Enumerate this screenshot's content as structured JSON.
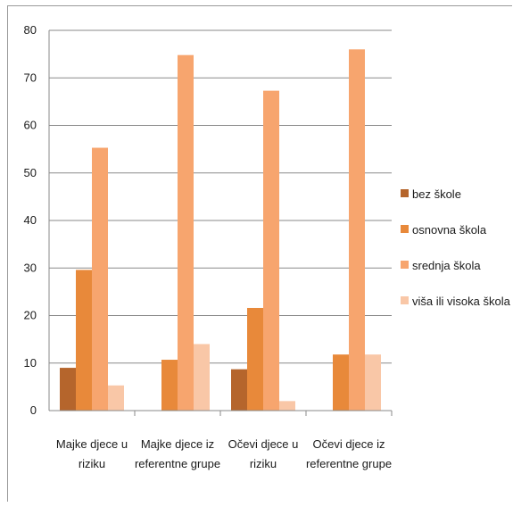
{
  "chart_data": {
    "type": "bar",
    "categories": [
      [
        "Majke djece u",
        "riziku"
      ],
      [
        "Majke djece iz",
        "referentne grupe"
      ],
      [
        "Očevi djece u",
        "riziku"
      ],
      [
        "Očevi djece iz",
        "referentne grupe"
      ]
    ],
    "series": [
      {
        "name": "bez škole",
        "color": "#b5652c",
        "values": [
          9,
          0,
          8.7,
          0
        ]
      },
      {
        "name": "osnovna škola",
        "color": "#e8893a",
        "values": [
          29.6,
          10.7,
          21.6,
          11.8
        ]
      },
      {
        "name": "srednja škola",
        "color": "#f7a56e",
        "values": [
          55.3,
          74.8,
          67.3,
          76
        ]
      },
      {
        "name": "viša ili visoka škola",
        "color": "#f9c7a7",
        "values": [
          5.3,
          14,
          2,
          11.8
        ]
      }
    ],
    "ylim": [
      0,
      80
    ],
    "yticks": [
      0,
      10,
      20,
      30,
      40,
      50,
      60,
      70,
      80
    ],
    "grid": true,
    "legend": "right",
    "title": "",
    "xlabel": "",
    "ylabel": ""
  }
}
